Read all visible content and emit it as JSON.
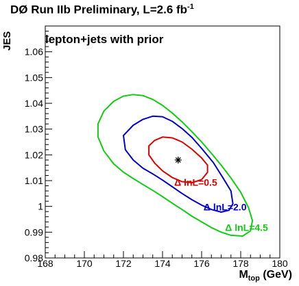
{
  "title": {
    "main": "DØ Run IIb Preliminary, L=2.6 fb",
    "sup": "-1"
  },
  "chart_data": {
    "type": "contour",
    "annotation": "lepton+jets with prior",
    "xlabel_main": "M",
    "xlabel_sub": "top",
    "xlabel_unit": " (GeV)",
    "ylabel": "JES",
    "xlim": [
      168,
      180
    ],
    "ylim": [
      0.98,
      1.07
    ],
    "x_ticks": [
      168,
      170,
      172,
      174,
      176,
      178,
      180
    ],
    "x_tick_labels": [
      "168",
      "170",
      "172",
      "174",
      "176",
      "178",
      "180"
    ],
    "y_ticks": [
      0.98,
      0.99,
      1.0,
      1.01,
      1.02,
      1.03,
      1.04,
      1.05,
      1.06
    ],
    "y_tick_labels": [
      "0.98",
      "0.99",
      "1",
      "1.01",
      "1.02",
      "1.03",
      "1.04",
      "1.05",
      "1.06"
    ],
    "best_fit": {
      "x": 174.8,
      "y": 1.018,
      "marker": "asterisk",
      "color": "#000000"
    },
    "contours": [
      {
        "label": "Δ lnL=0.5",
        "color": "#dd0000",
        "points": [
          [
            173.3,
            1.0235
          ],
          [
            173.6,
            1.0256
          ],
          [
            174.0,
            1.0269
          ],
          [
            174.5,
            1.0266
          ],
          [
            175.0,
            1.025
          ],
          [
            175.5,
            1.0222
          ],
          [
            176.0,
            1.0188
          ],
          [
            176.3,
            1.016
          ],
          [
            176.3,
            1.0132
          ],
          [
            176.0,
            1.0104
          ],
          [
            175.5,
            1.0092
          ],
          [
            175.0,
            1.0096
          ],
          [
            174.5,
            1.0112
          ],
          [
            174.0,
            1.0138
          ],
          [
            173.6,
            1.0168
          ],
          [
            173.3,
            1.02
          ]
        ],
        "label_x": 175.7,
        "label_y": 1.008
      },
      {
        "label": "Δ lnL=2.0",
        "color": "#0000cc",
        "points": [
          [
            172.0,
            1.0275
          ],
          [
            172.5,
            1.0315
          ],
          [
            173.0,
            1.0338
          ],
          [
            173.5,
            1.035
          ],
          [
            174.0,
            1.0348
          ],
          [
            174.5,
            1.033
          ],
          [
            175.0,
            1.0302
          ],
          [
            175.5,
            1.0268
          ],
          [
            176.0,
            1.0225
          ],
          [
            176.6,
            1.017
          ],
          [
            177.1,
            1.011
          ],
          [
            177.5,
            1.006
          ],
          [
            177.6,
            1.001
          ],
          [
            177.4,
            0.9985
          ],
          [
            177.0,
            0.9978
          ],
          [
            176.5,
            0.9988
          ],
          [
            176.0,
            1.0005
          ],
          [
            175.5,
            1.0026
          ],
          [
            175.0,
            1.005
          ],
          [
            174.5,
            1.0076
          ],
          [
            174.0,
            1.0102
          ],
          [
            173.5,
            1.0126
          ],
          [
            173.0,
            1.0148
          ],
          [
            172.5,
            1.018
          ],
          [
            172.1,
            1.022
          ]
        ],
        "label_x": 177.2,
        "label_y": 0.9985
      },
      {
        "label": "Δ lnL=4.5",
        "color": "#11cc11",
        "points": [
          [
            170.7,
            1.032
          ],
          [
            171.0,
            1.037
          ],
          [
            171.5,
            1.0408
          ],
          [
            172.0,
            1.0428
          ],
          [
            172.5,
            1.0434
          ],
          [
            173.0,
            1.043
          ],
          [
            173.5,
            1.0415
          ],
          [
            174.0,
            1.0392
          ],
          [
            174.5,
            1.0362
          ],
          [
            175.0,
            1.0328
          ],
          [
            175.5,
            1.029
          ],
          [
            176.0,
            1.025
          ],
          [
            176.5,
            1.0206
          ],
          [
            177.0,
            1.016
          ],
          [
            177.5,
            1.011
          ],
          [
            178.0,
            1.0055
          ],
          [
            178.4,
            0.9995
          ],
          [
            178.6,
            0.9945
          ],
          [
            178.5,
            0.9905
          ],
          [
            178.1,
            0.9885
          ],
          [
            177.5,
            0.9888
          ],
          [
            177.0,
            0.99
          ],
          [
            176.5,
            0.9918
          ],
          [
            176.0,
            0.994
          ],
          [
            175.5,
            0.9962
          ],
          [
            175.0,
            0.9988
          ],
          [
            174.5,
            1.0012
          ],
          [
            174.0,
            1.0038
          ],
          [
            173.5,
            1.0062
          ],
          [
            173.0,
            1.0085
          ],
          [
            172.5,
            1.0108
          ],
          [
            172.0,
            1.0133
          ],
          [
            171.5,
            1.0165
          ],
          [
            171.0,
            1.0215
          ],
          [
            170.7,
            1.027
          ]
        ],
        "label_x": 178.3,
        "label_y": 0.9905
      }
    ]
  }
}
